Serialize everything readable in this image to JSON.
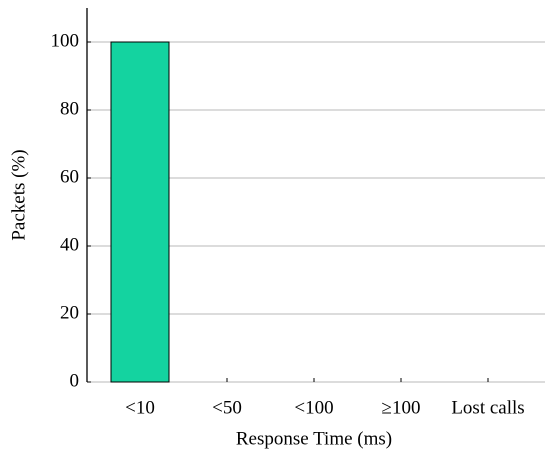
{
  "chart_data": {
    "type": "bar",
    "categories": [
      "<10",
      "<50",
      "<100",
      "≥100",
      "Lost calls"
    ],
    "values": [
      100,
      0,
      0,
      0,
      0
    ],
    "color": "#14d3a0",
    "xlabel": "Response Time (ms)",
    "ylabel": "Packets (%)",
    "ylim": [
      0,
      110
    ],
    "yticks": [
      0,
      20,
      40,
      60,
      80,
      100
    ],
    "grid": true
  }
}
